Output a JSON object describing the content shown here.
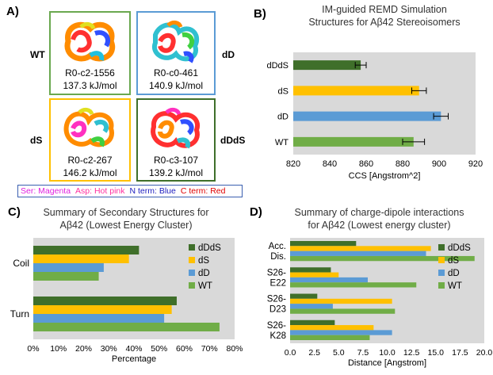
{
  "colors": {
    "dDdS": "#3f6f2a",
    "dS": "#ffc000",
    "dD": "#5b9bd5",
    "WT": "#70ad47",
    "box_WT": "#6aa84f",
    "box_dD": "#5b9bd5",
    "box_dS": "#ffc000",
    "box_dDdS": "#3f6f2a",
    "plot_bg": "#d9d9d9"
  },
  "panelA": {
    "label": "A)",
    "structures": [
      {
        "id": "WT",
        "side": "WT",
        "name": "R0-c2-1556",
        "energy": "137.3 kJ/mol"
      },
      {
        "id": "dD",
        "side": "dD",
        "name": "R0-c0-461",
        "energy": "140.9 kJ/mol"
      },
      {
        "id": "dS",
        "side": "dS",
        "name": "R0-c2-267",
        "energy": "146.2 kJ/mol"
      },
      {
        "id": "dDdS",
        "side": "dDdS",
        "name": "R0-c3-107",
        "energy": "139.2 kJ/mol"
      }
    ],
    "legend": {
      "ser": "Ser: Magenta",
      "asp": "Asp: Hot pink",
      "nterm": "N term: Blue",
      "cterm": "C term: Red"
    }
  },
  "chart_data": [
    {
      "panel": "B)",
      "type": "bar",
      "orientation": "horizontal",
      "title": "IM-guided REMD Simulation",
      "subtitle": "Structures for Aβ42 Stereoisomers",
      "xlabel": "CCS  [Angstrom^2]",
      "xlim": [
        820,
        920
      ],
      "xticks": [
        820,
        840,
        860,
        880,
        900,
        920
      ],
      "categories": [
        "dDdS",
        "dS",
        "dD",
        "WT"
      ],
      "values": [
        857,
        889,
        901,
        886
      ],
      "errors": [
        3,
        4,
        4,
        6
      ],
      "grid": false,
      "legend": "none"
    },
    {
      "panel": "C)",
      "type": "bar",
      "orientation": "horizontal",
      "title": "Summary of Secondary Structures for",
      "subtitle": "Aβ42 (Lowest Energy Cluster)",
      "xlabel": "Percentage",
      "xlim": [
        0,
        80
      ],
      "xticks": [
        "0%",
        "10%",
        "20%",
        "30%",
        "40%",
        "50%",
        "60%",
        "70%",
        "80%"
      ],
      "categories": [
        "Coil",
        "Turn"
      ],
      "series": [
        {
          "name": "dDdS",
          "values": [
            42,
            57
          ]
        },
        {
          "name": "dS",
          "values": [
            38,
            55
          ]
        },
        {
          "name": "dD",
          "values": [
            28,
            52
          ]
        },
        {
          "name": "WT",
          "values": [
            26,
            74
          ]
        }
      ],
      "legend": "right"
    },
    {
      "panel": "D)",
      "type": "bar",
      "orientation": "horizontal",
      "title": "Summary of charge-dipole interactions",
      "subtitle": "for Aβ42 (Lowest energy cluster)",
      "xlabel": "Distance [Angstrom]",
      "xlim": [
        0,
        20
      ],
      "xticks": [
        "0.0",
        "2.5",
        "5.0",
        "7.5",
        "10.0",
        "12.5",
        "15.0",
        "17.5",
        "20.0"
      ],
      "categories": [
        "Acc.\nDis.",
        "S26-\nE22",
        "S26-\nD23",
        "S26-\nK28"
      ],
      "series": [
        {
          "name": "dDdS",
          "values": [
            6.8,
            4.2,
            2.8,
            4.6
          ]
        },
        {
          "name": "dS",
          "values": [
            14.5,
            5.0,
            10.5,
            8.6
          ]
        },
        {
          "name": "dD",
          "values": [
            14.0,
            8.0,
            4.4,
            10.5
          ]
        },
        {
          "name": "WT",
          "values": [
            19.0,
            13.0,
            10.8,
            8.2
          ]
        }
      ],
      "legend": "right"
    }
  ]
}
